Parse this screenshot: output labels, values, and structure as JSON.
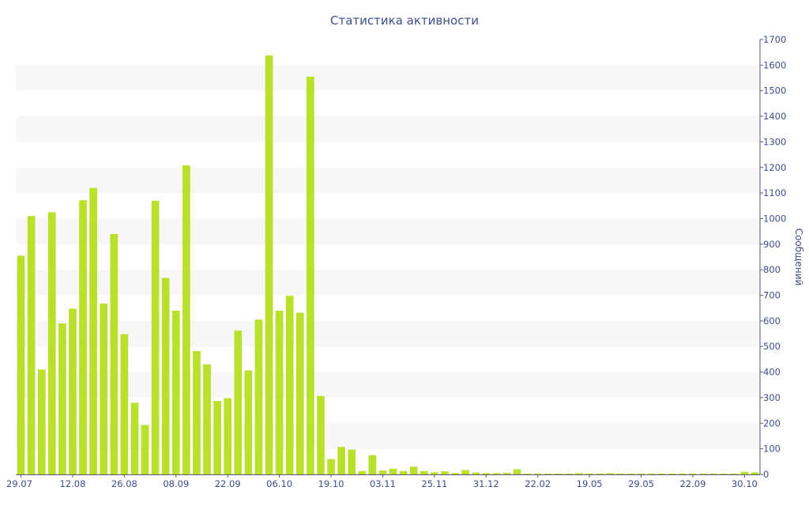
{
  "chart_data": {
    "type": "bar",
    "title": "Статистика активности",
    "ylabel": "Сообщений",
    "ylim": [
      0,
      1700
    ],
    "y_ticks": [
      0,
      100,
      200,
      300,
      400,
      500,
      600,
      700,
      800,
      900,
      1000,
      1100,
      1200,
      1300,
      1400,
      1500,
      1600,
      1700
    ],
    "x_tick_labels": [
      {
        "index": 0,
        "label": "29.07"
      },
      {
        "index": 5,
        "label": "12.08"
      },
      {
        "index": 10,
        "label": "26.08"
      },
      {
        "index": 15,
        "label": "08.09"
      },
      {
        "index": 20,
        "label": "22.09"
      },
      {
        "index": 25,
        "label": "06.10"
      },
      {
        "index": 30,
        "label": "19.10"
      },
      {
        "index": 35,
        "label": "03.11"
      },
      {
        "index": 40,
        "label": "25.11"
      },
      {
        "index": 45,
        "label": "31.12"
      },
      {
        "index": 50,
        "label": "22.02"
      },
      {
        "index": 55,
        "label": "19.05"
      },
      {
        "index": 60,
        "label": "29.05"
      },
      {
        "index": 65,
        "label": "22.09"
      },
      {
        "index": 70,
        "label": "30.10"
      }
    ],
    "values": [
      855,
      1010,
      410,
      1025,
      590,
      648,
      1072,
      1120,
      668,
      940,
      548,
      280,
      193,
      1070,
      768,
      640,
      1208,
      482,
      430,
      287,
      298,
      562,
      406,
      605,
      1638,
      640,
      698,
      632,
      1555,
      307,
      60,
      107,
      97,
      13,
      75,
      15,
      22,
      13,
      30,
      13,
      8,
      12,
      5,
      17,
      7,
      5,
      5,
      6,
      20,
      3,
      3,
      3,
      3,
      3,
      5,
      3,
      3,
      5,
      3,
      3,
      3,
      3,
      3,
      3,
      3,
      3,
      3,
      3,
      3,
      3,
      10,
      8
    ]
  },
  "colors": {
    "bar": "#b9e02a",
    "band": "#f7f7f7",
    "text": "#3e4e8a",
    "axis": "#555a6e"
  }
}
